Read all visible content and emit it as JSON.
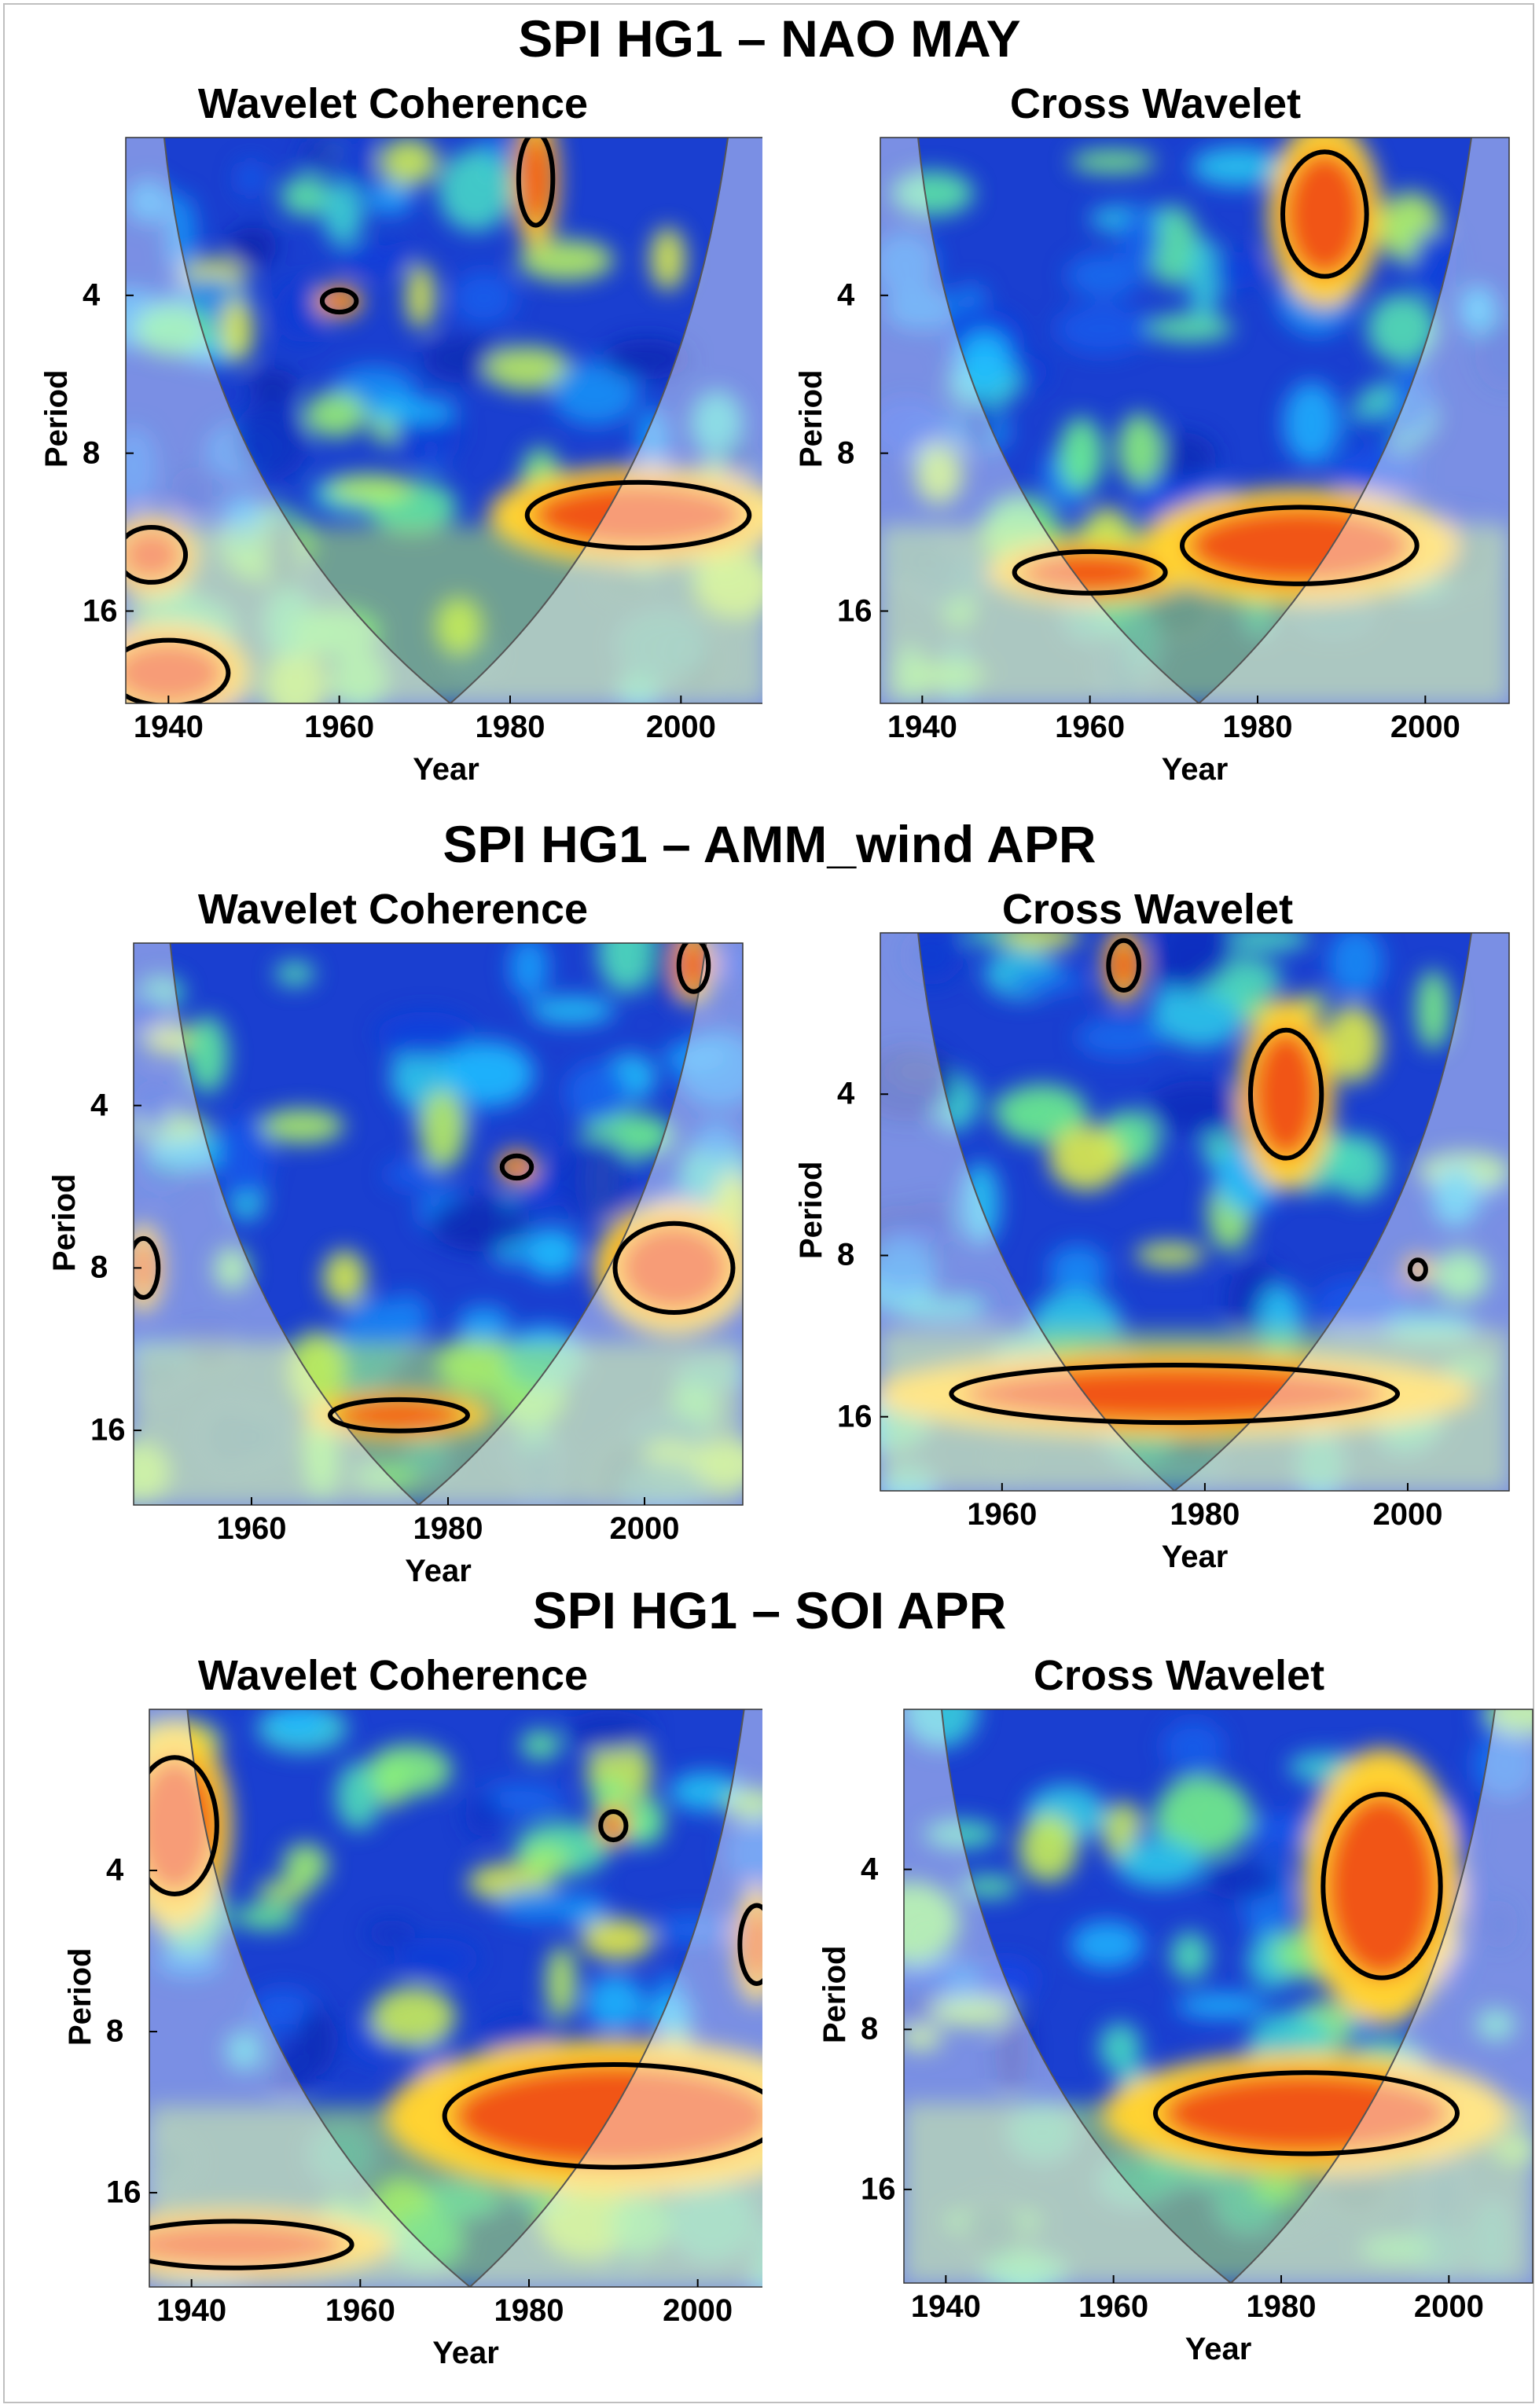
{
  "figure": {
    "rows": [
      {
        "title": "SPI HG1 – NAO MAY",
        "panels": [
          {
            "title": "Wavelet Coherence",
            "xticks": [
              "1940",
              "1960",
              "1980",
              "2000"
            ],
            "yticks": [
              "4",
              "8",
              "16"
            ],
            "xlabel": "Year",
            "ylabel": "Period"
          },
          {
            "title": "Cross Wavelet",
            "xticks": [
              "1940",
              "1960",
              "1980",
              "2000"
            ],
            "yticks": [
              "4",
              "8",
              "16"
            ],
            "xlabel": "Year",
            "ylabel": "Period"
          }
        ]
      },
      {
        "title": "SPI HG1 – AMM_wind APR",
        "panels": [
          {
            "title": "Wavelet Coherence",
            "xticks": [
              "1960",
              "1980",
              "2000"
            ],
            "yticks": [
              "4",
              "8",
              "16"
            ],
            "xlabel": "Year",
            "ylabel": "Period"
          },
          {
            "title": "Cross Wavelet",
            "xticks": [
              "1960",
              "1980",
              "2000"
            ],
            "yticks": [
              "4",
              "8",
              "16"
            ],
            "xlabel": "Year",
            "ylabel": "Period"
          }
        ]
      },
      {
        "title": "SPI HG1 – SOI APR",
        "panels": [
          {
            "title": "Wavelet Coherence",
            "xticks": [
              "1940",
              "1960",
              "1980",
              "2000"
            ],
            "yticks": [
              "4",
              "8",
              "16"
            ],
            "xlabel": "Year",
            "ylabel": "Period"
          },
          {
            "title": "Cross Wavelet",
            "xticks": [
              "1940",
              "1960",
              "1980",
              "2000"
            ],
            "yticks": [
              "4",
              "8",
              "16"
            ],
            "xlabel": "Year",
            "ylabel": "Period"
          }
        ]
      }
    ]
  },
  "colors": {
    "background_blue": "#1a3fd0",
    "deep_blue": "#0a1f9a",
    "cyan": "#36d6ff",
    "green": "#7ff07a",
    "yellow": "#ffe63a",
    "orange": "#ff8a1e",
    "red": "#e81a10",
    "coi_shade": "#ffffff",
    "contour": "#000000"
  },
  "chart_data": [
    {
      "type": "heatmap",
      "row": "SPI HG1 – NAO MAY",
      "title": "Wavelet Coherence",
      "xlabel": "Year",
      "ylabel": "Period",
      "xlim": [
        1935,
        2010
      ],
      "ylim": [
        2,
        24
      ],
      "yscale": "log2",
      "coi_vertex_year": 1973,
      "significant_regions": [
        {
          "year_center": 1983,
          "period_center": 2.4,
          "year_span": 4,
          "period_span": [
            2,
            3
          ]
        },
        {
          "year_center": 1960,
          "period_center": 4.1,
          "year_span": 4,
          "period_span": [
            3.9,
            4.3
          ]
        },
        {
          "year_center": 1995,
          "period_center": 10.5,
          "year_span": 26,
          "period_span": [
            9,
            12
          ]
        },
        {
          "year_center": 1938,
          "period_center": 12.5,
          "year_span": 8,
          "period_span": [
            11,
            14
          ]
        },
        {
          "year_center": 1940,
          "period_center": 21,
          "year_span": 14,
          "period_span": [
            18,
            24
          ]
        }
      ]
    },
    {
      "type": "heatmap",
      "row": "SPI HG1 – NAO MAY",
      "title": "Cross Wavelet",
      "xlabel": "Year",
      "ylabel": "Period",
      "xlim": [
        1935,
        2010
      ],
      "ylim": [
        2,
        24
      ],
      "yscale": "log2",
      "coi_vertex_year": 1973,
      "significant_regions": [
        {
          "year_center": 1988,
          "period_center": 2.8,
          "year_span": 10,
          "period_span": [
            2.2,
            3.8
          ]
        },
        {
          "year_center": 1960,
          "period_center": 13.5,
          "year_span": 18,
          "period_span": [
            12.5,
            15
          ]
        },
        {
          "year_center": 1985,
          "period_center": 12,
          "year_span": 28,
          "period_span": [
            10,
            14
          ]
        }
      ]
    },
    {
      "type": "heatmap",
      "row": "SPI HG1 – AMM_wind APR",
      "title": "Wavelet Coherence",
      "xlabel": "Year",
      "ylabel": "Period",
      "xlim": [
        1948,
        2010
      ],
      "ylim": [
        2,
        22
      ],
      "yscale": "log2",
      "coi_vertex_year": 1977,
      "significant_regions": [
        {
          "year_center": 2005,
          "period_center": 2.2,
          "year_span": 3,
          "period_span": [
            2,
            2.5
          ]
        },
        {
          "year_center": 1987,
          "period_center": 5.2,
          "year_span": 3,
          "period_span": [
            5,
            5.5
          ]
        },
        {
          "year_center": 1949,
          "period_center": 8,
          "year_span": 3,
          "period_span": [
            7,
            9
          ]
        },
        {
          "year_center": 2003,
          "period_center": 8,
          "year_span": 12,
          "period_span": [
            6.5,
            9.5
          ]
        },
        {
          "year_center": 1975,
          "period_center": 15,
          "year_span": 14,
          "period_span": [
            14,
            16
          ]
        }
      ]
    },
    {
      "type": "heatmap",
      "row": "SPI HG1 – AMM_wind APR",
      "title": "Cross Wavelet",
      "xlabel": "Year",
      "ylabel": "Period",
      "xlim": [
        1948,
        2010
      ],
      "ylim": [
        2,
        22
      ],
      "yscale": "log2",
      "coi_vertex_year": 1977,
      "significant_regions": [
        {
          "year_center": 1972,
          "period_center": 2.3,
          "year_span": 3,
          "period_span": [
            2.1,
            2.6
          ]
        },
        {
          "year_center": 1988,
          "period_center": 4,
          "year_span": 7,
          "period_span": [
            3,
            5.2
          ]
        },
        {
          "year_center": 2001,
          "period_center": 8.5,
          "year_span": 1,
          "period_span": [
            8.2,
            8.9
          ]
        },
        {
          "year_center": 1977,
          "period_center": 14.5,
          "year_span": 44,
          "period_span": [
            12.5,
            16
          ]
        }
      ]
    },
    {
      "type": "heatmap",
      "row": "SPI HG1 – SOI APR",
      "title": "Wavelet Coherence",
      "xlabel": "Year",
      "ylabel": "Period",
      "xlim": [
        1935,
        2010
      ],
      "ylim": [
        2,
        24
      ],
      "yscale": "log2",
      "coi_vertex_year": 1973,
      "significant_regions": [
        {
          "year_center": 1938,
          "period_center": 3.3,
          "year_span": 10,
          "period_span": [
            2.5,
            4.5
          ]
        },
        {
          "year_center": 1990,
          "period_center": 3.3,
          "year_span": 3,
          "period_span": [
            3.1,
            3.5
          ]
        },
        {
          "year_center": 2007,
          "period_center": 5.5,
          "year_span": 4,
          "period_span": [
            5,
            7
          ]
        },
        {
          "year_center": 1990,
          "period_center": 11.5,
          "year_span": 40,
          "period_span": [
            9,
            14
          ]
        },
        {
          "year_center": 1945,
          "period_center": 20,
          "year_span": 28,
          "period_span": [
            18,
            22
          ]
        }
      ]
    },
    {
      "type": "heatmap",
      "row": "SPI HG1 – SOI APR",
      "title": "Cross Wavelet",
      "xlabel": "Year",
      "ylabel": "Period",
      "xlim": [
        1935,
        2010
      ],
      "ylim": [
        2,
        24
      ],
      "yscale": "log2",
      "coi_vertex_year": 1974,
      "significant_regions": [
        {
          "year_center": 1992,
          "period_center": 4.3,
          "year_span": 14,
          "period_span": [
            2.8,
            6.2
          ]
        },
        {
          "year_center": 1983,
          "period_center": 11.5,
          "year_span": 36,
          "period_span": [
            9.5,
            13.5
          ]
        }
      ]
    }
  ]
}
